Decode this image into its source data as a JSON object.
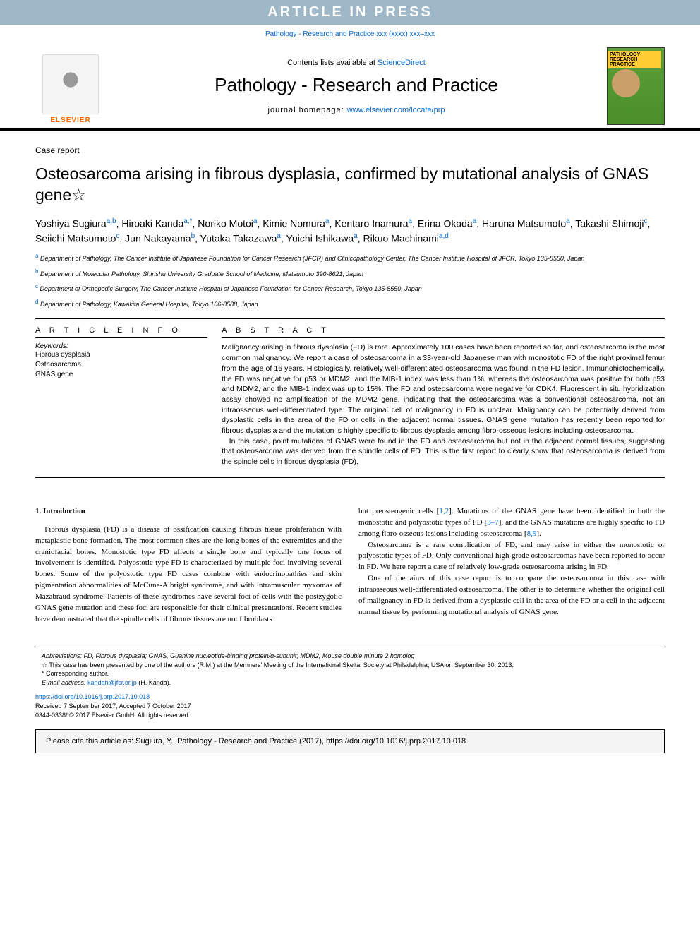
{
  "banner": "ARTICLE IN PRESS",
  "journalRef": "Pathology - Research and Practice xxx (xxxx) xxx–xxx",
  "masthead": {
    "contentsPrefix": "Contents lists available at ",
    "contentsLink": "ScienceDirect",
    "journalTitle": "Pathology - Research and Practice",
    "homepageLabel": "journal homepage: ",
    "homepageUrl": "www.elsevier.com/locate/prp",
    "elsevier": "ELSEVIER",
    "coverTitle": "PATHOLOGY RESEARCH PRACTICE"
  },
  "articleType": "Case report",
  "title": "Osteosarcoma arising in fibrous dysplasia, confirmed by mutational analysis of GNAS gene☆",
  "authorsHtml": "Yoshiya Sugiura<sup>a,b</sup>, Hiroaki Kanda<sup>a,*</sup>, Noriko Motoi<sup>a</sup>, Kimie Nomura<sup>a</sup>, Kentaro Inamura<sup>a</sup>, Erina Okada<sup>a</sup>, Haruna Matsumoto<sup>a</sup>, Takashi Shimoji<sup>c</sup>, Seiichi Matsumoto<sup>c</sup>, Jun Nakayama<sup>b</sup>, Yutaka Takazawa<sup>a</sup>, Yuichi Ishikawa<sup>a</sup>, Rikuo Machinami<sup>a,d</sup>",
  "affiliations": [
    {
      "sup": "a",
      "text": "Department of Pathology, The Cancer Institute of Japanese Foundation for Cancer Research (JFCR) and Clinicopathology Center, The Cancer Institute Hospital of JFCR, Tokyo 135-8550, Japan"
    },
    {
      "sup": "b",
      "text": "Department of Molecular Pathology, Shinshu University Graduate School of Medicine, Matsumoto 390-8621, Japan"
    },
    {
      "sup": "c",
      "text": "Department of Orthopedic Surgery, The Cancer Institute Hospital of Japanese Foundation for Cancer Research, Tokyo 135-8550, Japan"
    },
    {
      "sup": "d",
      "text": "Department of Pathology, Kawakita General Hospital, Tokyo 166-8588, Japan"
    }
  ],
  "info": {
    "heading": "A R T I C L E   I N F O",
    "kwLabel": "Keywords:",
    "keywords": [
      "Fibrous dysplasia",
      "Osteosarcoma",
      "GNAS gene"
    ]
  },
  "abstract": {
    "heading": "A B S T R A C T",
    "p1": "Malignancy arising in fibrous dysplasia (FD) is rare. Approximately 100 cases have been reported so far, and osteosarcoma is the most common malignancy. We report a case of osteosarcoma in a 33-year-old Japanese man with monostotic FD of the right proximal femur from the age of 16 years. Histologically, relatively well-differentiated osteosarcoma was found in the FD lesion. Immunohistochemically, the FD was negative for p53 or MDM2, and the MIB-1 index was less than 1%, whereas the osteosarcoma was positive for both p53 and MDM2, and the MIB-1 index was up to 15%. The FD and osteosarcoma were negative for CDK4. Fluorescent in situ hybridization assay showed no amplification of the MDM2 gene, indicating that the osteosarcoma was a conventional osteosarcoma, not an intraosseous well-differentiated type. The original cell of malignancy in FD is unclear. Malignancy can be potentially derived from dysplastic cells in the area of the FD or cells in the adjacent normal tissues. GNAS gene mutation has recently been reported for fibrous dysplasia and the mutation is highly specific to fibrous dysplasia among fibro-osseous lesions including osteosarcoma.",
    "p2": "In this case, point mutations of GNAS were found in the FD and osteosarcoma but not in the adjacent normal tissues, suggesting that osteosarcoma was derived from the spindle cells of FD. This is the first report to clearly show that osteosarcoma is derived from the spindle cells in fibrous dysplasia (FD)."
  },
  "body": {
    "introHeading": "1.  Introduction",
    "col1p1": "Fibrous dysplasia (FD) is a disease of ossification causing fibrous tissue proliferation with metaplastic bone formation. The most common sites are the long bones of the extremities and the craniofacial bones. Monostotic type FD affects a single bone and typically one focus of involvement is identified. Polyostotic type FD is characterized by multiple foci involving several bones. Some of the polyostotic type FD cases combine with endocrinopathies and skin pigmentation abnormalities of McCune-Albright syndrome, and with intramuscular myxomas of Mazabraud syndrome. Patients of these syndromes have several foci of cells with the postzygotic GNAS gene mutation and these foci are responsible for their clinical presentations. Recent studies have demonstrated that the spindle cells of fibrous tissues are not fibroblasts",
    "col2p1a": "but preosteogenic cells [",
    "col2p1r1": "1,2",
    "col2p1b": "]. Mutations of the GNAS gene have been identified in both the monostotic and polyostotic types of FD [",
    "col2p1r2": "3–7",
    "col2p1c": "], and the GNAS mutations are highly specific to FD among fibro-osseous lesions including osteosarcoma [",
    "col2p1r3": "8,9",
    "col2p1d": "].",
    "col2p2": "Osteosarcoma is a rare complication of FD, and may arise in either the monostotic or polyostotic types of FD. Only conventional high-grade osteosarcomas have been reported to occur in FD. We here report a case of relatively low-grade osteosarcoma arising in FD.",
    "col2p3": "One of the aims of this case report is to compare the osteosarcoma in this case with intraosseous well-differentiated osteosarcoma. The other is to determine whether the original cell of malignancy in FD is derived from a dysplastic cell in the area of the FD or a cell in the adjacent normal tissue by performing mutational analysis of GNAS gene."
  },
  "footnotes": {
    "abbrev": "Abbreviations: FD, Fibrous dysplasia; GNAS, Guanine nucleotide-binding protein/α-subunit; MDM2, Mouse double minute 2 homolog",
    "star": "☆ This case has been presented by one of the authors (R.M.) at the Memners' Meeting of the International Skeltal Society at Philadelphia, USA on September 30, 2013.",
    "corr": "* Corresponding author.",
    "emailLabel": "E-mail address: ",
    "email": "kandah@jfcr.or.jp",
    "emailSuffix": " (H. Kanda)."
  },
  "doiBlock": {
    "doi": "https://doi.org/10.1016/j.prp.2017.10.018",
    "received": "Received 7 September 2017; Accepted 7 October 2017",
    "copyright": "0344-0338/ © 2017 Elsevier GmbH. All rights reserved."
  },
  "citeBox": "Please cite this article as: Sugiura, Y., Pathology - Research and Practice (2017), https://doi.org/10.1016/j.prp.2017.10.018",
  "colors": {
    "bannerBg": "#9fb8c8",
    "link": "#0066cc",
    "elsevierOrange": "#ff6600",
    "coverGreen": "#5a9f3a",
    "coverYellow": "#ffcc33",
    "citeBg": "#f4f4f4"
  },
  "typography": {
    "bodyFont": "Georgia, Times New Roman, serif",
    "uiFont": "Arial, sans-serif",
    "titleSize": 23,
    "journalTitleSize": 26,
    "bodySize": 11,
    "abstractSize": 10.5,
    "footnoteSize": 9
  }
}
